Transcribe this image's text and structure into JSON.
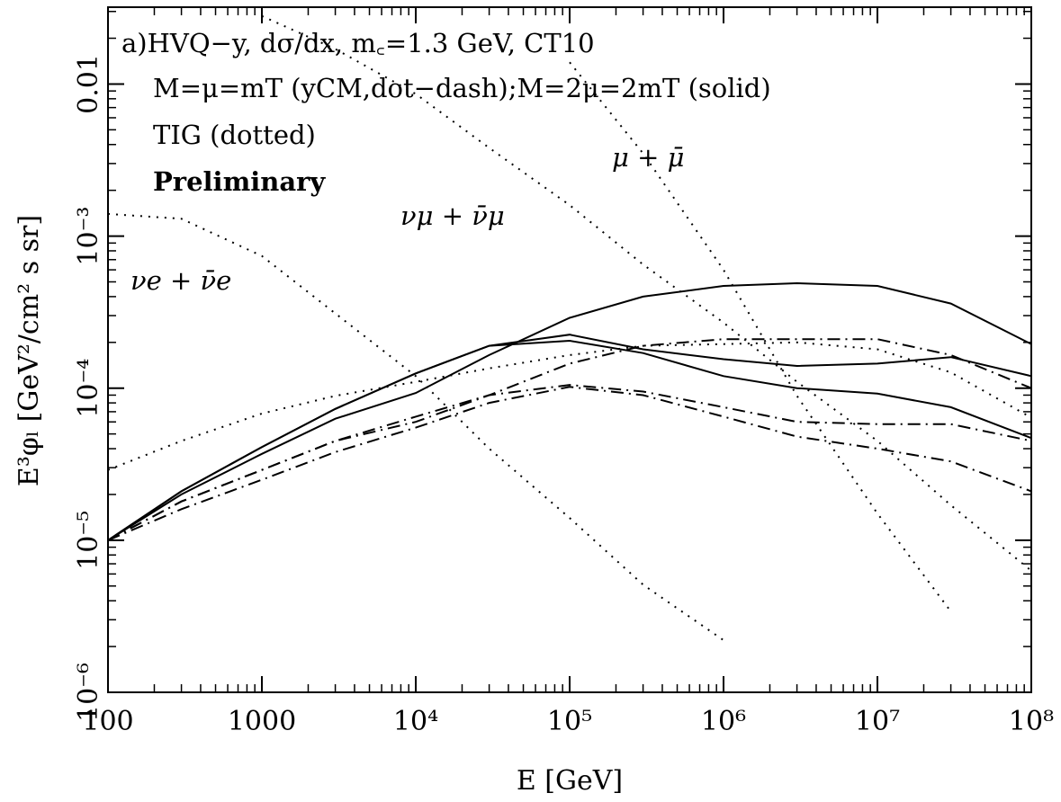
{
  "chart_data": {
    "type": "line",
    "xlabel": "E [GeV]",
    "ylabel": "E³φₗ [GeV²/cm² s sr]",
    "xscale": "log",
    "yscale": "log",
    "xlim": [
      100,
      100000000
    ],
    "ylim": [
      1e-06,
      0.032
    ],
    "xticks": [
      100,
      1000,
      {
        "value": 10000,
        "label": "10⁴"
      },
      {
        "value": 100000,
        "label": "10⁵"
      },
      {
        "value": 1000000,
        "label": "10⁶"
      },
      {
        "value": 10000000,
        "label": "10⁷"
      },
      {
        "value": 100000000,
        "label": "10⁸"
      }
    ],
    "yticks": [
      {
        "value": 1e-06,
        "label": "10⁻⁶"
      },
      {
        "value": 1e-05,
        "label": "10⁻⁵"
      },
      {
        "value": 0.0001,
        "label": "10⁻⁴"
      },
      {
        "value": 0.001,
        "label": "10⁻³"
      },
      0.01
    ],
    "annotations": [
      "a)HVQ−y, dσ/dx, m꜀=1.3 GeV, CT10",
      "M=μ=mT (yCM,dot−dash);M=2μ=2mT (solid)",
      "TIG (dotted)",
      "Preliminary",
      "μ + μ̄",
      "νμ + ν̄μ",
      "νe + ν̄e"
    ],
    "x": [
      100,
      300,
      1000,
      3000,
      10000,
      30000,
      100000,
      300000,
      1000000,
      3000000,
      10000000,
      30000000,
      100000000
    ],
    "series": [
      {
        "style": "solid",
        "color": "#000000",
        "values": [
          1e-05,
          2e-05,
          3.7e-05,
          6.3e-05,
          9.3e-05,
          0.000165,
          0.00029,
          0.0004,
          0.00047,
          0.00049,
          0.00047,
          0.00036,
          0.000195
        ]
      },
      {
        "style": "solid",
        "color": "#000000",
        "values": [
          1e-05,
          2.1e-05,
          4.1e-05,
          7.3e-05,
          0.000125,
          0.00019,
          0.000225,
          0.00018,
          0.000155,
          0.00014,
          0.000145,
          0.00016,
          0.00012
        ]
      },
      {
        "style": "solid",
        "color": "#000000",
        "values": [
          1e-05,
          2.1e-05,
          4.1e-05,
          7.3e-05,
          0.000125,
          0.00019,
          0.000205,
          0.00017,
          0.00012,
          0.0001,
          9.2e-05,
          7.5e-05,
          4.7e-05
        ]
      },
      {
        "style": "dot-dash",
        "color": "#000000",
        "values": [
          1e-05,
          1.8e-05,
          2.9e-05,
          4.5e-05,
          6e-05,
          9e-05,
          0.000145,
          0.00019,
          0.00021,
          0.00021,
          0.00021,
          0.000165,
          0.0001
        ]
      },
      {
        "style": "dot-dash",
        "color": "#000000",
        "values": [
          1e-05,
          1.8e-05,
          2.9e-05,
          4.5e-05,
          6.5e-05,
          9e-05,
          0.000105,
          9.5e-05,
          7.5e-05,
          6e-05,
          5.8e-05,
          5.8e-05,
          4.5e-05
        ]
      },
      {
        "style": "dot-dash",
        "color": "#000000",
        "values": [
          1e-05,
          1.6e-05,
          2.5e-05,
          3.8e-05,
          5.5e-05,
          8e-05,
          0.000102,
          9e-05,
          6.5e-05,
          4.8e-05,
          4e-05,
          3.3e-05,
          2.1e-05
        ]
      },
      {
        "style": "dotted",
        "color": "#000000",
        "values": [
          0.0014,
          0.0013,
          0.00074,
          0.00031,
          0.00012,
          4e-05,
          1.4e-05,
          5.1e-06,
          2.2e-06,
          null,
          null,
          null,
          null
        ]
      },
      {
        "style": "dotted",
        "color": "#000000",
        "values": [
          null,
          null,
          0.028,
          0.017,
          0.0086,
          0.0038,
          0.0016,
          0.00065,
          0.00027,
          0.00011,
          4.5e-05,
          1.7e-05,
          6.3e-06
        ]
      },
      {
        "style": "dotted",
        "color": "#000000",
        "values": [
          null,
          null,
          null,
          null,
          null,
          null,
          0.0139,
          0.0035,
          0.0006,
          8.9e-05,
          1.5e-05,
          3.4e-06,
          null
        ]
      },
      {
        "style": "dotted",
        "color": "#000000",
        "values": [
          2.9e-05,
          4.5e-05,
          6.8e-05,
          8.9e-05,
          0.00011,
          0.000135,
          0.000165,
          0.00019,
          0.000195,
          0.0002,
          0.00018,
          0.000127,
          6.4e-05
        ]
      }
    ]
  }
}
